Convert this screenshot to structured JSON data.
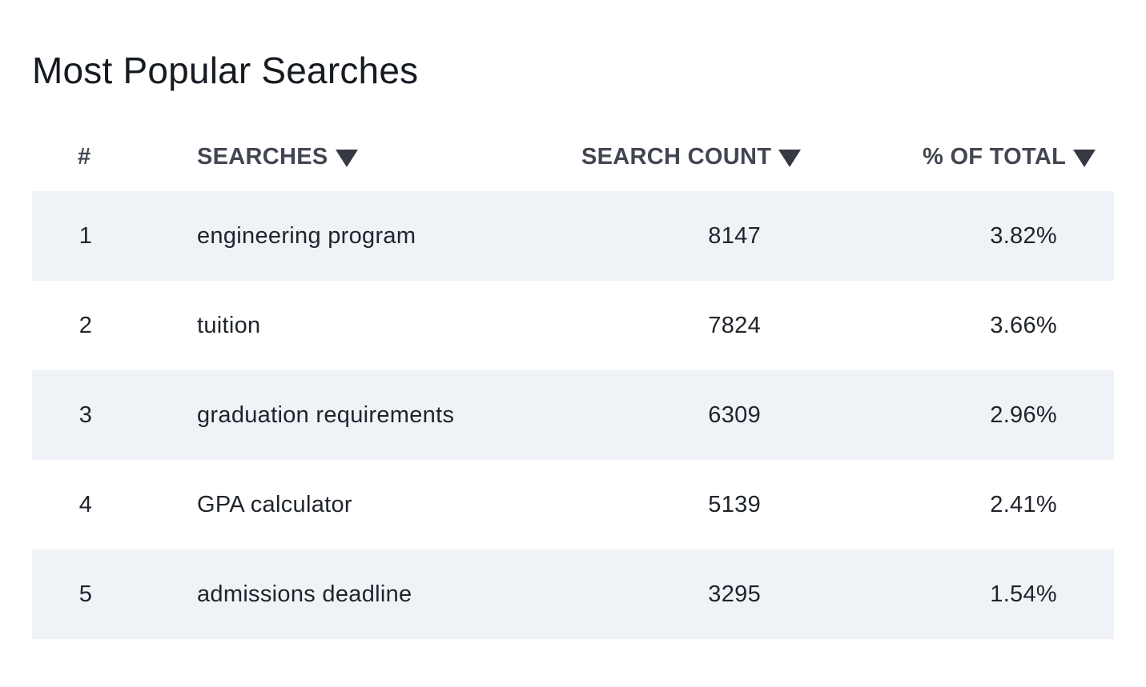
{
  "title": "Most Popular Searches",
  "colors": {
    "row_shade": "#eff3f8",
    "header_text": "#414651",
    "body_text": "#1f242b"
  },
  "columns": {
    "rank": "#",
    "searches": "SEARCHES",
    "search_count": "SEARCH COUNT",
    "pct_total": "% OF TOTAL"
  },
  "sort_icon": "caret-down-icon",
  "rows": [
    {
      "rank": "1",
      "term": "engineering program",
      "count": "8147",
      "pct": "3.82%"
    },
    {
      "rank": "2",
      "term": "tuition",
      "count": "7824",
      "pct": "3.66%"
    },
    {
      "rank": "3",
      "term": "graduation requirements",
      "count": "6309",
      "pct": "2.96%"
    },
    {
      "rank": "4",
      "term": "GPA calculator",
      "count": "5139",
      "pct": "2.41%"
    },
    {
      "rank": "5",
      "term": "admissions deadline",
      "count": "3295",
      "pct": "1.54%"
    }
  ]
}
